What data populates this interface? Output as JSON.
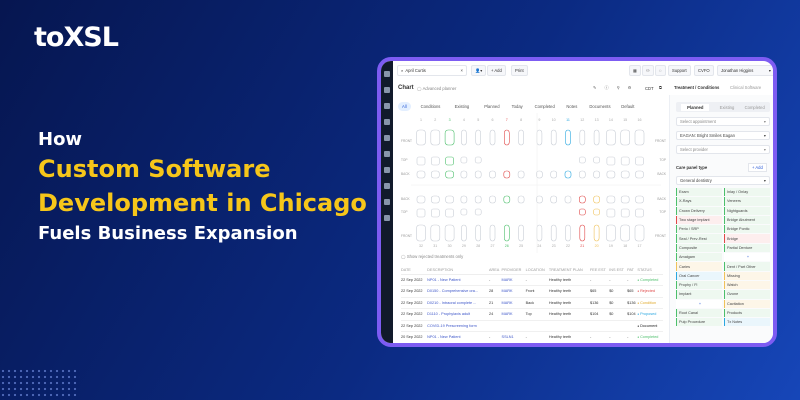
{
  "banner": {
    "logo": "toXSL",
    "line1": "How",
    "line2": "Custom Software",
    "line3": "Development in Chicago",
    "line4": "Fuels Business Expansion"
  },
  "colors": {
    "accent": "#f6c61a",
    "frame": "#7d5cf2",
    "green": "#4cbf6b",
    "red": "#e04848",
    "blue": "#2aa7e0",
    "yellow": "#efc25a"
  },
  "toolbar": {
    "search_value": "April Curtis",
    "add": "+ Add",
    "print": "Print",
    "support": "Support",
    "location": "CVFO",
    "user": "Jonathan Higgins"
  },
  "chart": {
    "title": "Chart",
    "toggle": "Advanced planner",
    "code": "CDT",
    "filters": [
      "All",
      "Conditions",
      "Existing",
      "Planned",
      "Today",
      "Completed",
      "Notes",
      "Documents",
      "Default"
    ],
    "row_labels": [
      "FRONT",
      "TOP",
      "BACK"
    ],
    "upper_numbers": [
      "1",
      "2",
      "3",
      "4",
      "5",
      "6",
      "7",
      "8",
      "9",
      "10",
      "11",
      "12",
      "13",
      "14",
      "15",
      "16"
    ],
    "lower_numbers": [
      "32",
      "31",
      "30",
      "29",
      "28",
      "27",
      "26",
      "25",
      "24",
      "23",
      "22",
      "21",
      "20",
      "19",
      "18",
      "17"
    ],
    "upper_status": [
      "",
      "",
      "green",
      "",
      "",
      "",
      "red",
      "",
      "",
      "",
      "blue",
      "",
      "",
      "",
      "",
      ""
    ],
    "lower_status": [
      "",
      "",
      "",
      "",
      "",
      "",
      "green",
      "",
      "",
      "",
      "",
      "red",
      "yellow",
      "",
      "",
      ""
    ],
    "show_rejected": "Show rejected treatments only"
  },
  "table": {
    "headers": [
      "DATE",
      "DESCRIPTION",
      "AREA",
      "PROVIDER",
      "LOCATION",
      "TREATMENT PLAN",
      "FEE EST",
      "INS EST",
      "PAT",
      "STATUS"
    ],
    "rows": [
      [
        "22 Sep 2022",
        "NP01 - New Patient",
        "-",
        "MARK",
        "-",
        "Healthy teeth",
        "-",
        "-",
        "-",
        "Completed",
        "#4cbf6b"
      ],
      [
        "22 Sep 2022",
        "D0150 - Comprehensive ora...",
        "28",
        "MARK",
        "Front",
        "Healthy teeth",
        "$65",
        "$0",
        "$65",
        "Rejected",
        "#e04848"
      ],
      [
        "22 Sep 2022",
        "D0210 - Intraoral complete ...",
        "21",
        "MARK",
        "Back",
        "Healthy teeth",
        "$136",
        "$0",
        "$136",
        "Condition",
        "#e0a92a"
      ],
      [
        "22 Sep 2022",
        "D1110 - Prophylaxis adult",
        "24",
        "MARK",
        "Top",
        "Healthy teeth",
        "$104",
        "$0",
        "$104",
        "Proposed",
        "#2aa7e0"
      ],
      [
        "22 Sep 2022",
        "COVID-19 Prescreening form",
        "",
        "",
        "",
        "",
        "",
        "",
        "",
        "Document",
        "#222"
      ],
      [
        "20 Sep 2022",
        "NP01 - New Patient",
        "-",
        "SSLN1",
        "-",
        "Healthy teeth",
        "-",
        "-",
        "-",
        "Completed",
        "#4cbf6b"
      ]
    ]
  },
  "panel": {
    "tabs": [
      "Treatment / Conditions",
      "Clinical Software"
    ],
    "subtabs": [
      "Planned",
      "Existing",
      "Completed"
    ],
    "select_appointment": "Select appointment",
    "clinic": "EAGAN: Bright Smiles Eagan",
    "select_provider": "Select provider",
    "care_title": "Care panel type",
    "add": "+ Add",
    "care_type": "General dentistry",
    "items": [
      [
        "Exam",
        "#4cbf6b"
      ],
      [
        "Inlay / Onlay",
        "#4cbf6b"
      ],
      [
        "X-Rays",
        "#4cbf6b"
      ],
      [
        "Veneers",
        "#4cbf6b"
      ],
      [
        "Crown Delivery",
        "#4cbf6b"
      ],
      [
        "Nightguards",
        "#4cbf6b"
      ],
      [
        "Two stage implant",
        "#e04848"
      ],
      [
        "Bridge Abutment",
        "#4cbf6b"
      ],
      [
        "Perio / SRP",
        "#4cbf6b"
      ],
      [
        "Bridge Pontic",
        "#4cbf6b"
      ],
      [
        "Seal / Prev-Rest",
        "#4cbf6b"
      ],
      [
        "Bridge",
        "#e04848"
      ],
      [
        "Composite",
        "#4cbf6b"
      ],
      [
        "Partial Denture",
        "#4cbf6b"
      ],
      [
        "Amalgam",
        "#4cbf6b"
      ],
      [
        "+",
        ""
      ],
      [
        "Caries",
        "#efc25a"
      ],
      [
        "Dent / Part Other",
        "#4cbf6b"
      ],
      [
        "Oral Cancer",
        "#2aa7e0"
      ],
      [
        "Missing",
        "#efc25a"
      ],
      [
        "Prophy / Fl",
        "#4cbf6b"
      ],
      [
        "Watch",
        "#efc25a"
      ],
      [
        "Implant",
        "#4cbf6b"
      ],
      [
        "Ozone",
        "#4cbf6b"
      ],
      [
        "+",
        ""
      ],
      [
        "Cavitation",
        "#efc25a"
      ],
      [
        "Root Canal",
        "#4cbf6b"
      ],
      [
        "Products",
        "#4cbf6b"
      ],
      [
        "Pulp Procedure",
        "#4cbf6b"
      ],
      [
        "Tx Notes",
        "#2aa7e0"
      ]
    ]
  }
}
